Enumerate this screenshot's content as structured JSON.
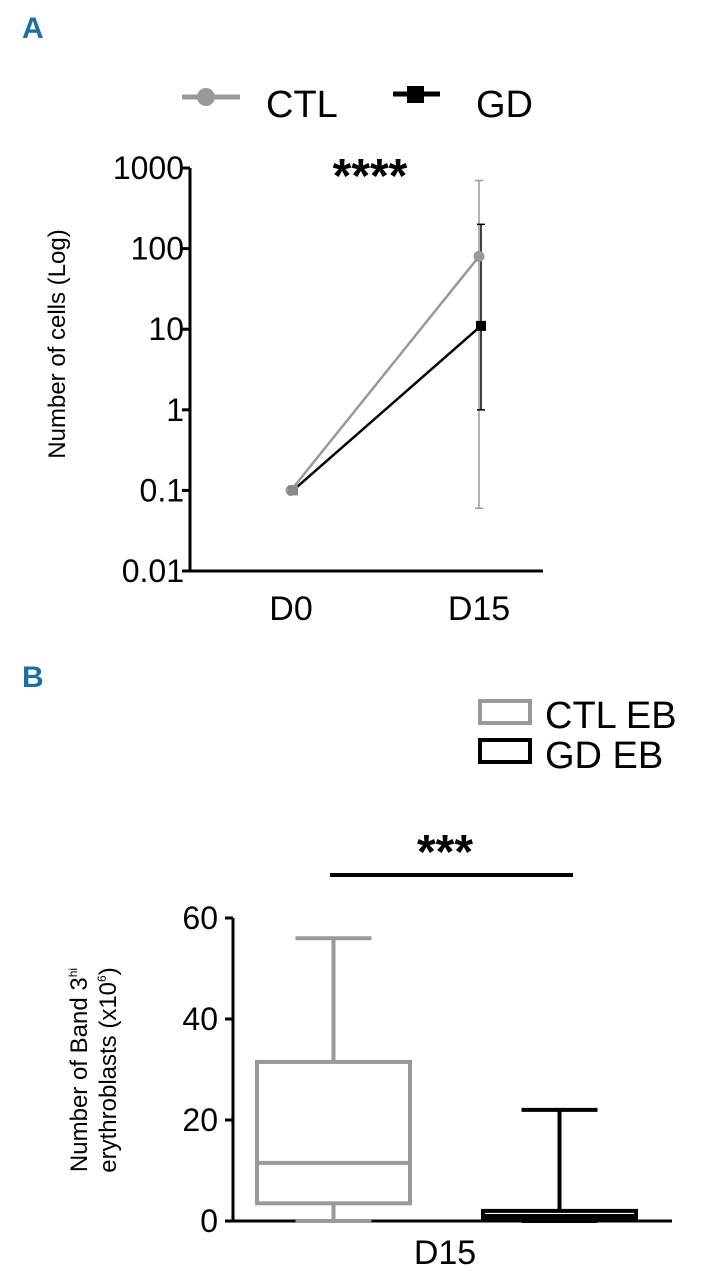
{
  "panels": {
    "a_label": "A",
    "b_label": "B"
  },
  "colors": {
    "ctl": "#999999",
    "gd": "#000000",
    "panel_letter": "#1d6fa3"
  },
  "chart_data": [
    {
      "type": "line",
      "panel": "A",
      "ylabel": "Number of cells (Log)",
      "yscale": "log",
      "ylim": [
        0.01,
        1000
      ],
      "yticks": [
        0.01,
        0.1,
        1,
        10,
        100,
        1000
      ],
      "ytick_labels": [
        "0.01",
        "0.1",
        "1",
        "10",
        "100",
        "1000"
      ],
      "categories": [
        "D0",
        "D15"
      ],
      "legend": {
        "placement": "top"
      },
      "significance": "****",
      "series": [
        {
          "name": "CTL",
          "color": "#999999",
          "marker": "circle",
          "values": [
            0.1,
            80
          ],
          "err_low": [
            0.1,
            0.06
          ],
          "err_high": [
            0.1,
            700
          ]
        },
        {
          "name": "GD",
          "color": "#000000",
          "marker": "square",
          "values": [
            0.1,
            11
          ],
          "err_low": [
            0.1,
            1
          ],
          "err_high": [
            0.1,
            200
          ]
        }
      ]
    },
    {
      "type": "box",
      "panel": "B",
      "ylabel_line1": "Number of Band 3",
      "ylabel_sup1": "hi",
      "ylabel_line2": "erythroblasts (x10",
      "ylabel_sup2": "6",
      "ylabel_close": ")",
      "ylim": [
        0,
        60
      ],
      "yticks": [
        0,
        20,
        40,
        60
      ],
      "ytick_labels": [
        "0",
        "20",
        "40",
        "60"
      ],
      "category": "D15",
      "legend": {
        "placement": "top-right"
      },
      "significance": "***",
      "series": [
        {
          "name": "CTL EB",
          "color": "#999999",
          "min": 0,
          "q1": 3.5,
          "median": 11.5,
          "q3": 31.5,
          "max": 56
        },
        {
          "name": "GD EB",
          "color": "#000000",
          "min": 0,
          "q1": 0.3,
          "median": 1,
          "q3": 2,
          "max": 22
        }
      ]
    }
  ]
}
